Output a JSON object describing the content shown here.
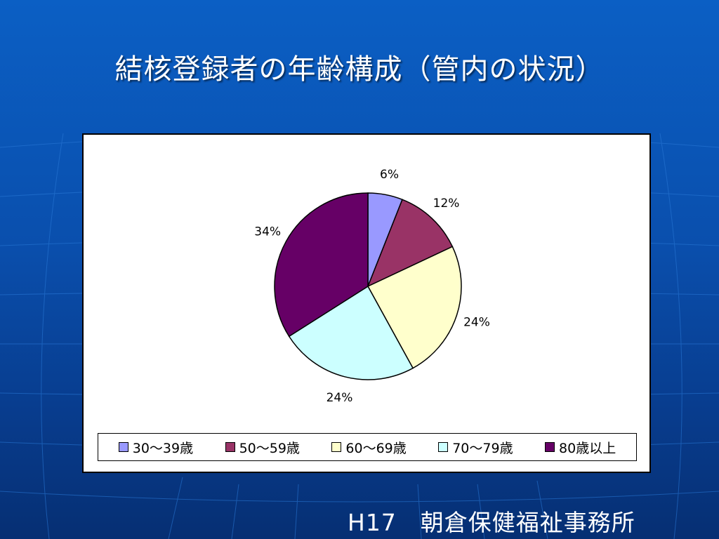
{
  "slide": {
    "title": "結核登録者の年齢構成（管内の状況）",
    "footer": "H17　朝倉保健福祉事務所"
  },
  "chart_data": {
    "type": "pie",
    "title": "",
    "categories": [
      "30～39歳",
      "50～59歳",
      "60～69歳",
      "70～79歳",
      "80歳以上"
    ],
    "values": [
      6,
      12,
      24,
      24,
      34
    ],
    "value_labels": [
      "6%",
      "12%",
      "24%",
      "24%",
      "34%"
    ],
    "colors": [
      "#9999ff",
      "#993366",
      "#ffffcc",
      "#ccffff",
      "#660066"
    ],
    "legend_position": "bottom",
    "start_angle_deg": 0,
    "direction": "clockwise"
  }
}
